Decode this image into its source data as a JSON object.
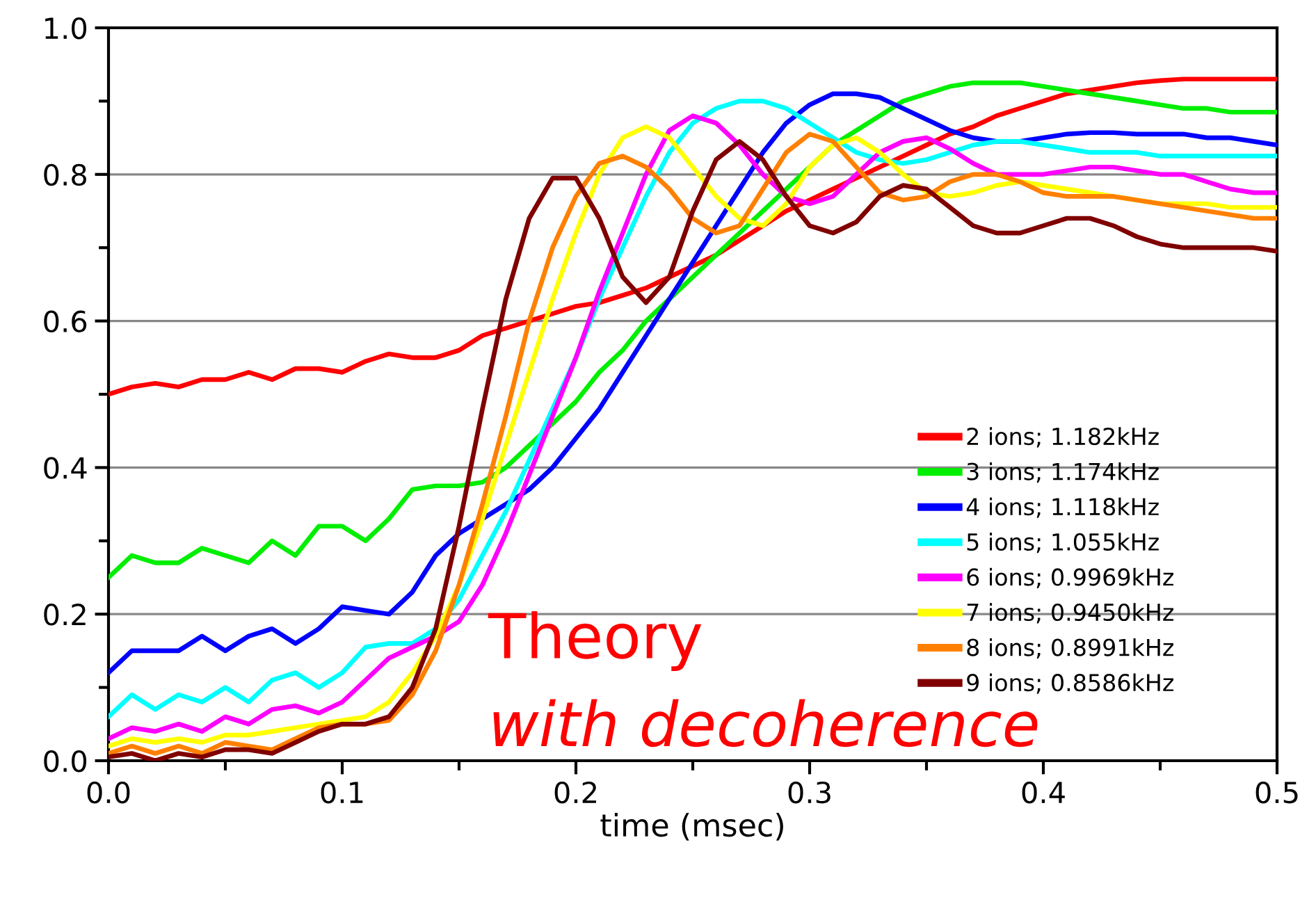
{
  "chart_data": {
    "type": "line",
    "xlabel": "time (msec)",
    "xlim": [
      0,
      0.5
    ],
    "ylim": [
      0,
      1
    ],
    "xticks": [
      {
        "value": 0,
        "label": "0.0"
      },
      {
        "value": 0.1,
        "label": "0.1"
      },
      {
        "value": 0.2,
        "label": "0.2"
      },
      {
        "value": 0.3,
        "label": "0.3"
      },
      {
        "value": 0.4,
        "label": "0.4"
      },
      {
        "value": 0.5,
        "label": "0.5"
      }
    ],
    "yticks": [
      {
        "value": 0,
        "label": "0.0"
      },
      {
        "value": 0.2,
        "label": "0.2"
      },
      {
        "value": 0.4,
        "label": "0.4"
      },
      {
        "value": 0.6,
        "label": "0.6"
      },
      {
        "value": 0.8,
        "label": "0.8"
      },
      {
        "value": 1,
        "label": "1.0"
      }
    ],
    "grid": "y",
    "legend": "lower right",
    "marker": "none",
    "line_style": "solid",
    "annotations": [
      "Theory",
      "with decoherence"
    ],
    "x": [
      0,
      0.01,
      0.02,
      0.03,
      0.04,
      0.05,
      0.06,
      0.07,
      0.08,
      0.09,
      0.1,
      0.11,
      0.12,
      0.13,
      0.14,
      0.15,
      0.16,
      0.17,
      0.18,
      0.19,
      0.2,
      0.21,
      0.22,
      0.23,
      0.24,
      0.25,
      0.26,
      0.27,
      0.28,
      0.29,
      0.3,
      0.31,
      0.32,
      0.33,
      0.34,
      0.35,
      0.36,
      0.37,
      0.38,
      0.39,
      0.4,
      0.41,
      0.42,
      0.43,
      0.44,
      0.45,
      0.46,
      0.47,
      0.48,
      0.49,
      0.5
    ],
    "series": [
      {
        "name": "2 ions; 1.182kHz",
        "color": "#ff0000",
        "values": [
          0.5,
          0.51,
          0.515,
          0.51,
          0.52,
          0.52,
          0.53,
          0.52,
          0.535,
          0.535,
          0.53,
          0.545,
          0.555,
          0.55,
          0.55,
          0.56,
          0.58,
          0.59,
          0.6,
          0.61,
          0.62,
          0.625,
          0.635,
          0.645,
          0.66,
          0.675,
          0.69,
          0.71,
          0.73,
          0.75,
          0.765,
          0.78,
          0.795,
          0.81,
          0.825,
          0.84,
          0.855,
          0.865,
          0.88,
          0.89,
          0.9,
          0.91,
          0.915,
          0.92,
          0.925,
          0.928,
          0.93,
          0.93,
          0.93,
          0.93,
          0.93
        ]
      },
      {
        "name": "3 ions; 1.174kHz",
        "color": "#00ee00",
        "values": [
          0.25,
          0.28,
          0.27,
          0.27,
          0.29,
          0.28,
          0.27,
          0.3,
          0.28,
          0.32,
          0.32,
          0.3,
          0.33,
          0.37,
          0.375,
          0.375,
          0.38,
          0.4,
          0.43,
          0.46,
          0.49,
          0.53,
          0.56,
          0.6,
          0.63,
          0.66,
          0.69,
          0.72,
          0.75,
          0.78,
          0.81,
          0.84,
          0.86,
          0.88,
          0.9,
          0.91,
          0.92,
          0.925,
          0.925,
          0.925,
          0.92,
          0.915,
          0.91,
          0.905,
          0.9,
          0.895,
          0.89,
          0.89,
          0.885,
          0.885,
          0.885
        ]
      },
      {
        "name": "4 ions; 1.118kHz",
        "color": "#0000ff",
        "values": [
          0.12,
          0.15,
          0.15,
          0.15,
          0.17,
          0.15,
          0.17,
          0.18,
          0.16,
          0.18,
          0.21,
          0.205,
          0.2,
          0.23,
          0.28,
          0.31,
          0.33,
          0.35,
          0.37,
          0.4,
          0.44,
          0.48,
          0.53,
          0.58,
          0.63,
          0.68,
          0.73,
          0.78,
          0.83,
          0.87,
          0.895,
          0.91,
          0.91,
          0.905,
          0.89,
          0.875,
          0.86,
          0.85,
          0.845,
          0.845,
          0.85,
          0.855,
          0.857,
          0.857,
          0.855,
          0.855,
          0.855,
          0.85,
          0.85,
          0.845,
          0.84
        ]
      },
      {
        "name": "5 ions; 1.055kHz",
        "color": "#00ffff",
        "values": [
          0.06,
          0.09,
          0.07,
          0.09,
          0.08,
          0.1,
          0.08,
          0.11,
          0.12,
          0.1,
          0.12,
          0.155,
          0.16,
          0.16,
          0.18,
          0.22,
          0.28,
          0.34,
          0.41,
          0.48,
          0.55,
          0.63,
          0.7,
          0.77,
          0.83,
          0.87,
          0.89,
          0.9,
          0.9,
          0.89,
          0.87,
          0.85,
          0.83,
          0.82,
          0.815,
          0.82,
          0.83,
          0.84,
          0.845,
          0.845,
          0.84,
          0.835,
          0.83,
          0.83,
          0.83,
          0.825,
          0.825,
          0.825,
          0.825,
          0.825,
          0.825
        ]
      },
      {
        "name": "6 ions; 0.9969kHz",
        "color": "#ff00ff",
        "values": [
          0.03,
          0.045,
          0.04,
          0.05,
          0.04,
          0.06,
          0.05,
          0.07,
          0.075,
          0.065,
          0.08,
          0.11,
          0.14,
          0.155,
          0.17,
          0.19,
          0.24,
          0.31,
          0.39,
          0.47,
          0.55,
          0.64,
          0.72,
          0.8,
          0.86,
          0.88,
          0.87,
          0.84,
          0.8,
          0.77,
          0.76,
          0.77,
          0.8,
          0.83,
          0.845,
          0.85,
          0.835,
          0.815,
          0.8,
          0.8,
          0.8,
          0.805,
          0.81,
          0.81,
          0.805,
          0.8,
          0.8,
          0.79,
          0.78,
          0.775,
          0.775
        ]
      },
      {
        "name": "7 ions; 0.9450kHz",
        "color": "#ffff00",
        "values": [
          0.02,
          0.03,
          0.025,
          0.03,
          0.025,
          0.035,
          0.035,
          0.04,
          0.045,
          0.05,
          0.055,
          0.06,
          0.08,
          0.12,
          0.17,
          0.24,
          0.33,
          0.43,
          0.53,
          0.63,
          0.72,
          0.8,
          0.85,
          0.865,
          0.85,
          0.81,
          0.77,
          0.74,
          0.73,
          0.76,
          0.81,
          0.84,
          0.85,
          0.83,
          0.8,
          0.775,
          0.77,
          0.775,
          0.785,
          0.79,
          0.785,
          0.78,
          0.775,
          0.77,
          0.765,
          0.76,
          0.76,
          0.76,
          0.755,
          0.755,
          0.755
        ]
      },
      {
        "name": "8 ions; 0.8991kHz",
        "color": "#ff8000",
        "values": [
          0.01,
          0.02,
          0.01,
          0.02,
          0.01,
          0.025,
          0.02,
          0.015,
          0.03,
          0.045,
          0.05,
          0.05,
          0.055,
          0.09,
          0.15,
          0.24,
          0.35,
          0.47,
          0.6,
          0.7,
          0.77,
          0.815,
          0.825,
          0.81,
          0.78,
          0.74,
          0.72,
          0.73,
          0.78,
          0.83,
          0.855,
          0.845,
          0.81,
          0.775,
          0.765,
          0.77,
          0.79,
          0.8,
          0.8,
          0.79,
          0.775,
          0.77,
          0.77,
          0.77,
          0.765,
          0.76,
          0.755,
          0.75,
          0.745,
          0.74,
          0.74
        ]
      },
      {
        "name": "9 ions; 0.8586kHz",
        "color": "#800000",
        "values": [
          0.005,
          0.01,
          0.0,
          0.01,
          0.005,
          0.015,
          0.015,
          0.01,
          0.025,
          0.04,
          0.05,
          0.05,
          0.06,
          0.1,
          0.18,
          0.32,
          0.48,
          0.63,
          0.74,
          0.795,
          0.795,
          0.74,
          0.66,
          0.625,
          0.66,
          0.75,
          0.82,
          0.845,
          0.82,
          0.77,
          0.73,
          0.72,
          0.735,
          0.77,
          0.785,
          0.78,
          0.755,
          0.73,
          0.72,
          0.72,
          0.73,
          0.74,
          0.74,
          0.73,
          0.715,
          0.705,
          0.7,
          0.7,
          0.7,
          0.7,
          0.695
        ]
      }
    ]
  }
}
